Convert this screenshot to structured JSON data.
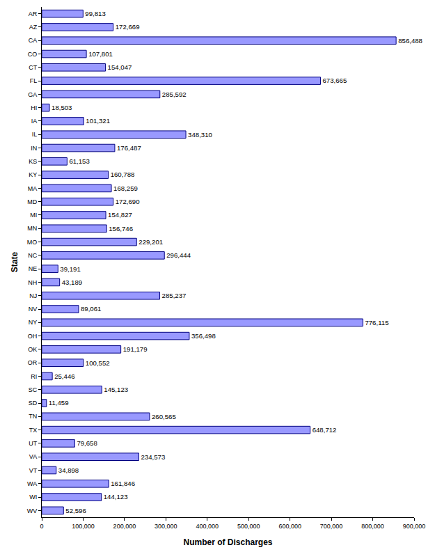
{
  "chart_data": {
    "type": "bar",
    "orientation": "horizontal",
    "x_label": "Number of Discharges",
    "y_label": "State",
    "categories": [
      "AR",
      "AZ",
      "CA",
      "CO",
      "CT",
      "FL",
      "GA",
      "HI",
      "IA",
      "IL",
      "IN",
      "KS",
      "KY",
      "MA",
      "MD",
      "MI",
      "MN",
      "MO",
      "NC",
      "NE",
      "NH",
      "NJ",
      "NV",
      "NY",
      "OH",
      "OK",
      "OR",
      "RI",
      "SC",
      "SD",
      "TN",
      "TX",
      "UT",
      "VA",
      "VT",
      "WA",
      "WI",
      "WV"
    ],
    "values": [
      99813,
      172669,
      856488,
      107801,
      154047,
      673665,
      285592,
      18503,
      101321,
      348310,
      176487,
      61153,
      160788,
      168259,
      172690,
      154827,
      156746,
      229201,
      296444,
      39191,
      43189,
      285237,
      89061,
      776115,
      356498,
      191179,
      100552,
      25446,
      145123,
      11459,
      260565,
      648712,
      79658,
      234573,
      34898,
      161846,
      144123,
      52596
    ],
    "value_labels": [
      "99,813",
      "172,669",
      "856,488",
      "107,801",
      "154,047",
      "673,665",
      "285,592",
      "18,503",
      "101,321",
      "348,310",
      "176,487",
      "61,153",
      "160,788",
      "168,259",
      "172,690",
      "154,827",
      "156,746",
      "229,201",
      "296,444",
      "39,191",
      "43,189",
      "285,237",
      "89,061",
      "776,115",
      "356,498",
      "191,179",
      "100,552",
      "25,446",
      "145,123",
      "11,459",
      "260,565",
      "648,712",
      "79,658",
      "234,573",
      "34,898",
      "161,846",
      "144,123",
      "52,596"
    ],
    "data_labels": true,
    "color": "#9999ff",
    "grid": false,
    "xlim": [
      0,
      900000
    ],
    "xticks": [
      0,
      {
        "value": 100000,
        "label": "100,000"
      },
      {
        "value": 200000,
        "label": "200,000"
      },
      {
        "value": 300000,
        "label": "300,000"
      },
      {
        "value": 400000,
        "label": "400,000"
      },
      {
        "value": 500000,
        "label": "500,000"
      },
      {
        "value": 600000,
        "label": "600,000"
      },
      {
        "value": 700000,
        "label": "700,000"
      },
      {
        "value": 800000,
        "label": "800,000"
      },
      {
        "value": 900000,
        "label": "900,000"
      }
    ]
  }
}
